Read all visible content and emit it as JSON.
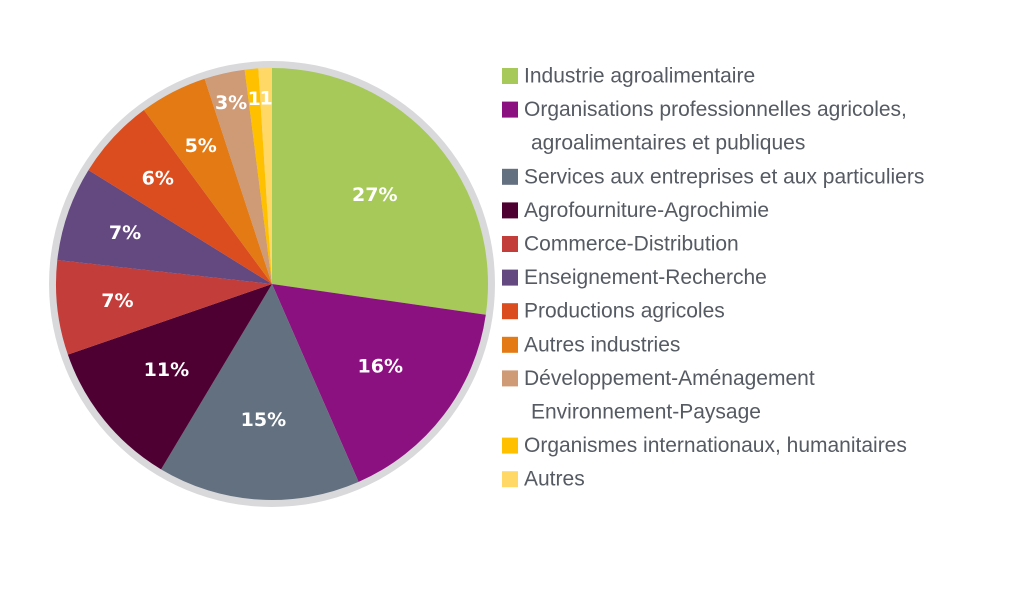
{
  "chart_data": {
    "type": "pie",
    "start_angle": "12 o'clock",
    "direction": "clockwise",
    "border_color": "#d9d9dc",
    "legend_placement": "right",
    "slices": [
      {
        "label": "Industrie agroalimentaire",
        "value": 27,
        "display": "27%",
        "color": "#a6c95a"
      },
      {
        "label": "Organisations professionnelles agricoles, agroalimentaires et publiques",
        "label_lines": [
          "Organisations professionnelles agricoles,",
          "agroalimentaires et publiques"
        ],
        "value": 16,
        "display": "16%",
        "color": "#8c1180"
      },
      {
        "label": "Services aux entreprises et aux particuliers",
        "value": 15,
        "display": "15%",
        "color": "#637080"
      },
      {
        "label": "Agrofourniture-Agrochimie",
        "value": 11,
        "display": "11%",
        "color": "#4f0033"
      },
      {
        "label": "Commerce-Distribution",
        "value": 7,
        "display": "7%",
        "color": "#c33d3a"
      },
      {
        "label": "Enseignement-Recherche",
        "value": 7,
        "display": "7%",
        "color": "#644880"
      },
      {
        "label": "Productions agricoles",
        "value": 6,
        "display": "6%",
        "color": "#db4c1f"
      },
      {
        "label": "Autres industries",
        "value": 5,
        "display": "5%",
        "color": "#e37a13"
      },
      {
        "label": "Développement-Aménagement Environnement-Paysage",
        "label_lines": [
          "Développement-Aménagement",
          "Environnement-Paysage"
        ],
        "value": 3,
        "display": "3%",
        "color": "#cf9a76"
      },
      {
        "label": "Organismes internationaux, humanitaires",
        "value": 1,
        "display": "1",
        "color": "#ffc000"
      },
      {
        "label": "Autres",
        "value": 1,
        "display": "1",
        "color": "#ffd866"
      }
    ]
  }
}
